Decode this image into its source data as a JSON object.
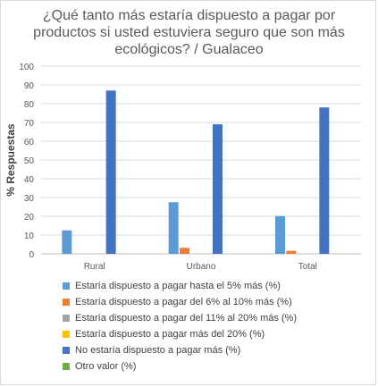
{
  "chart_data": {
    "type": "bar",
    "title": [
      "¿Qué tanto más estaría dispuesto a pagar por",
      "productos si usted estuviera seguro que son más",
      "ecológicos? / Gualaceo"
    ],
    "ylabel": "% Respuestas",
    "xlabel": "",
    "ylim": [
      0,
      100
    ],
    "yticks": [
      0,
      10,
      20,
      30,
      40,
      50,
      60,
      70,
      80,
      90,
      100
    ],
    "categories": [
      "Rural",
      "Urbano",
      "Total"
    ],
    "series": [
      {
        "name": "Estaría dispuesto a pagar hasta el 5% más (%)",
        "color": "#5b9bd5",
        "values": [
          12.5,
          27.5,
          20.1
        ]
      },
      {
        "name": "Estaría dispuesto a pagar del 6% al 10% más (%)",
        "color": "#ed7d31",
        "values": [
          0,
          3.2,
          1.6
        ]
      },
      {
        "name": "Estaría dispuesto a pagar del 11% al 20% más (%)",
        "color": "#a5a5a5",
        "values": [
          0,
          0,
          0
        ]
      },
      {
        "name": "Estaría dispuesto a pagar más del 20% (%)",
        "color": "#ffc000",
        "values": [
          0,
          0,
          0
        ]
      },
      {
        "name": "No estaría dispuesto a pagar más (%)",
        "color": "#4472c4",
        "values": [
          87,
          69,
          78
        ]
      },
      {
        "name": "Otro valor (%)",
        "color": "#70ad47",
        "values": [
          0,
          0,
          0
        ]
      }
    ],
    "grid": true,
    "legend_position": "bottom"
  }
}
